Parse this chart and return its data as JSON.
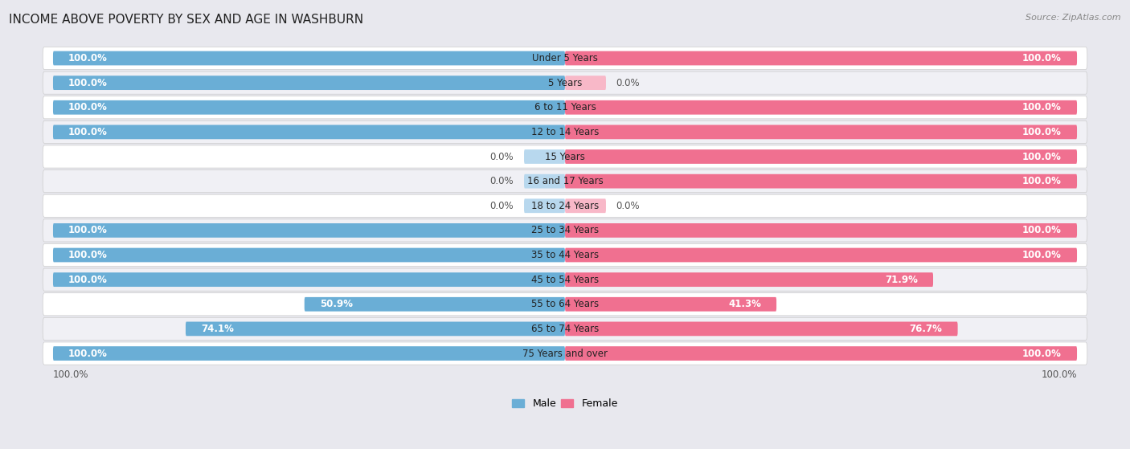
{
  "title": "INCOME ABOVE POVERTY BY SEX AND AGE IN WASHBURN",
  "source": "Source: ZipAtlas.com",
  "categories": [
    "Under 5 Years",
    "5 Years",
    "6 to 11 Years",
    "12 to 14 Years",
    "15 Years",
    "16 and 17 Years",
    "18 to 24 Years",
    "25 to 34 Years",
    "35 to 44 Years",
    "45 to 54 Years",
    "55 to 64 Years",
    "65 to 74 Years",
    "75 Years and over"
  ],
  "male_values": [
    100.0,
    100.0,
    100.0,
    100.0,
    0.0,
    0.0,
    0.0,
    100.0,
    100.0,
    100.0,
    50.9,
    74.1,
    100.0
  ],
  "female_values": [
    100.0,
    0.0,
    100.0,
    100.0,
    100.0,
    100.0,
    0.0,
    100.0,
    100.0,
    71.9,
    41.3,
    76.7,
    100.0
  ],
  "male_color": "#6aaed6",
  "female_color": "#f07090",
  "male_zero_color": "#b8d8ee",
  "female_zero_color": "#f8b8c8",
  "row_bg_odd": "#f0f0f5",
  "row_bg_even": "#ffffff",
  "background_color": "#e8e8ee",
  "title_fontsize": 11,
  "label_fontsize": 8.5,
  "value_fontsize": 8.5,
  "legend_fontsize": 9
}
